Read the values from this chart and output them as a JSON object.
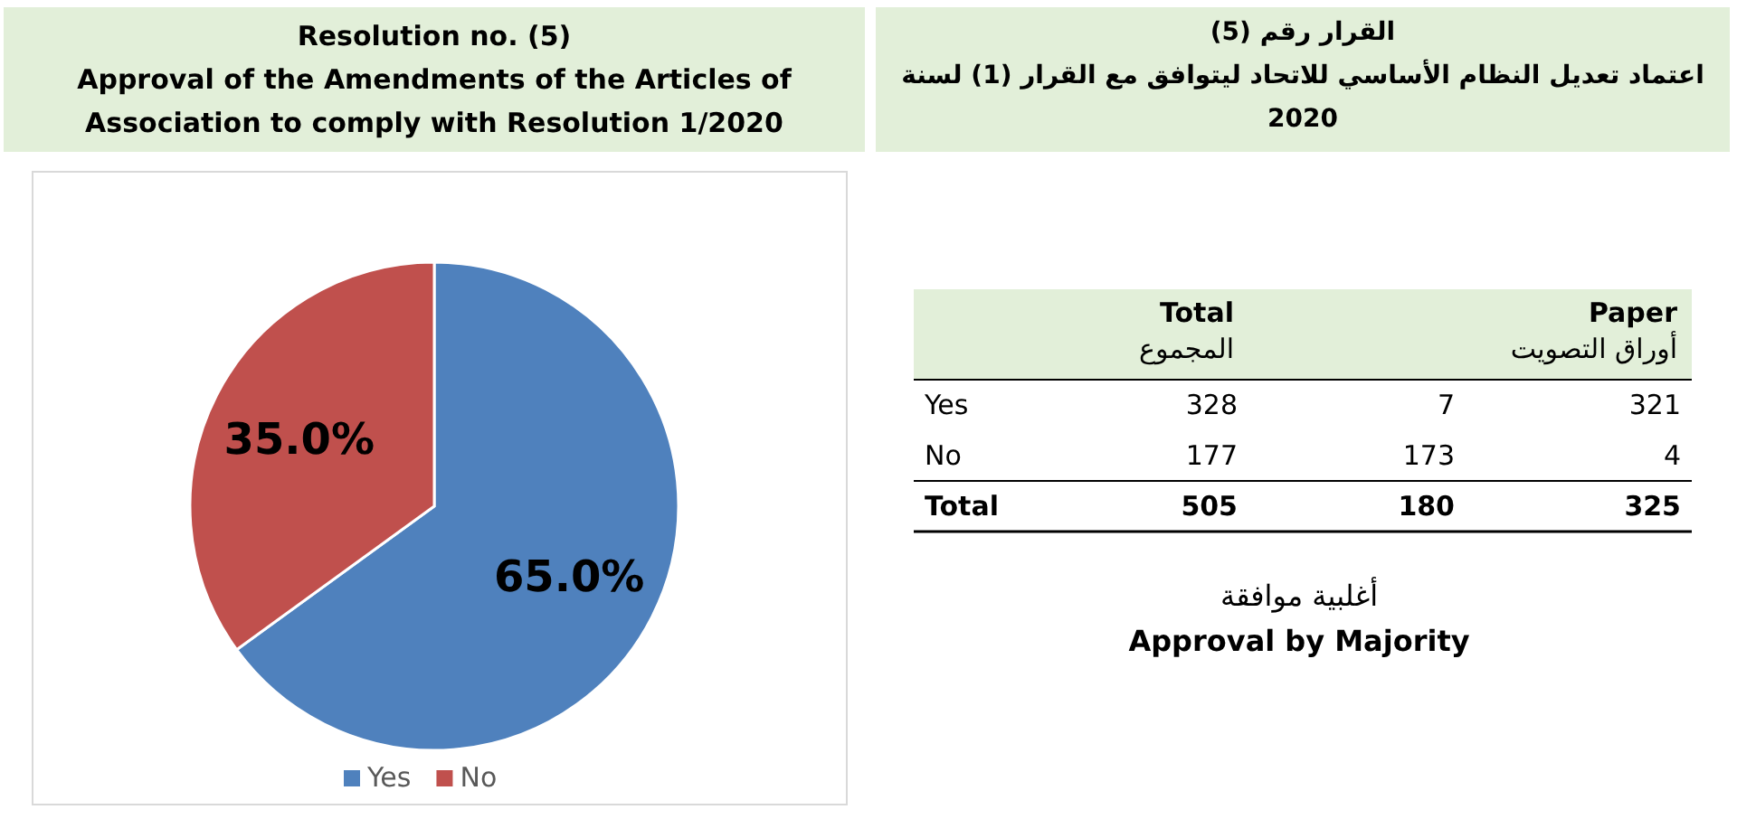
{
  "chart_data": [
    {
      "type": "pie",
      "title": "Resolution no. (5)\nApproval of the Amendments of the Articles of Association to comply with Resolution 1/2020",
      "categories": [
        "Yes",
        "No"
      ],
      "values": [
        65.0,
        35.0
      ],
      "colors": [
        "#4f81bd",
        "#c0504d"
      ],
      "value_labels": [
        "65.0%",
        "35.0%"
      ],
      "legend": "bottom"
    },
    {
      "type": "heatmap",
      "title": "القرار رقم (5)\nاعتماد تعديل النظام الأساسي للاتحاد ليتوافق مع القرار (1) لسنة\n2020",
      "categories": [
        "Total\nالمجموع",
        null,
        "Paper\nأوراق التصويت"
      ],
      "y_categories": [
        "Yes",
        "No",
        "Total"
      ],
      "cells": [
        [
          328,
          7,
          321
        ],
        [
          177,
          173,
          4
        ],
        [
          505,
          180,
          325
        ]
      ],
      "data_labels": true,
      "annotations": [
        "أغلبية موافقة",
        "Approval by Majority"
      ]
    }
  ]
}
